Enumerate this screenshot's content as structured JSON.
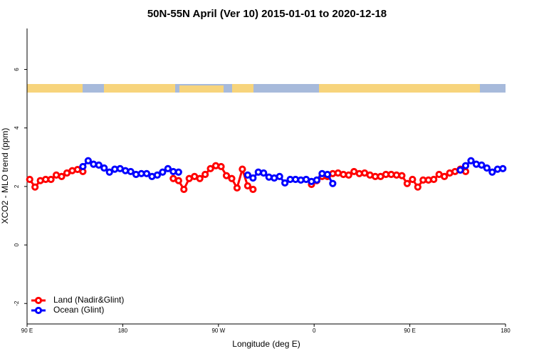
{
  "chart_data": {
    "type": "line",
    "title": "50N-55N April (Ver 10)   2015-01-01 to 2020-12-18",
    "x_label": "Longitude (deg E)",
    "y_label": "XCO2 - MLO trend (ppm)",
    "x": [
      92.5,
      97.5,
      102.5,
      107.5,
      112.5,
      117.5,
      122.5,
      127.5,
      132.5,
      137.5,
      142.5,
      147.5,
      152.5,
      157.5,
      162.5,
      167.5,
      172.5,
      177.5,
      182.5,
      187.5,
      192.5,
      197.5,
      202.5,
      207.5,
      212.5,
      217.5,
      222.5,
      227.5,
      232.5,
      237.5,
      242.5,
      247.5,
      252.5,
      257.5,
      262.5,
      267.5,
      272.5,
      277.5,
      282.5,
      287.5,
      292.5,
      297.5,
      302.5,
      307.5,
      312.5,
      317.5,
      322.5,
      327.5,
      332.5,
      337.5,
      342.5,
      347.5,
      352.5,
      357.5,
      362.5,
      367.5,
      372.5,
      377.5,
      382.5,
      387.5,
      392.5,
      397.5,
      402.5,
      407.5,
      412.5,
      417.5,
      422.5,
      427.5,
      432.5,
      437.5,
      442.5,
      447.5,
      452.5,
      457.5,
      462.5,
      467.5,
      472.5,
      477.5,
      482.5,
      487.5,
      492.5,
      497.5,
      502.5,
      507.5,
      512.5,
      517.5,
      522.5,
      527.5,
      532.5,
      537.5
    ],
    "series": [
      {
        "name": "Land (Nadir&Glint)",
        "color": "#ff0000",
        "values": [
          2.24,
          1.98,
          2.2,
          2.24,
          2.24,
          2.39,
          2.34,
          2.46,
          2.54,
          2.58,
          2.51,
          null,
          null,
          null,
          null,
          null,
          null,
          null,
          null,
          null,
          null,
          null,
          null,
          null,
          null,
          null,
          null,
          2.27,
          2.2,
          1.9,
          2.27,
          2.34,
          2.27,
          2.41,
          2.61,
          2.71,
          2.68,
          2.37,
          2.27,
          1.95,
          2.59,
          2.02,
          1.9,
          null,
          null,
          null,
          null,
          null,
          null,
          null,
          null,
          null,
          null,
          2.07,
          2.2,
          2.34,
          2.34,
          2.44,
          2.46,
          2.41,
          2.39,
          2.51,
          2.44,
          2.46,
          2.39,
          2.34,
          2.34,
          2.41,
          2.41,
          2.39,
          2.37,
          2.1,
          2.24,
          1.98,
          2.22,
          2.22,
          2.24,
          2.41,
          2.34,
          2.46,
          2.51,
          2.59,
          2.51,
          null,
          null,
          null,
          null,
          null,
          null,
          null
        ]
      },
      {
        "name": "Ocean (Glint)",
        "color": "#0000ff",
        "values": [
          null,
          null,
          null,
          null,
          null,
          null,
          null,
          null,
          null,
          null,
          2.68,
          2.88,
          2.76,
          2.73,
          2.63,
          2.49,
          2.59,
          2.61,
          2.54,
          2.51,
          2.41,
          2.44,
          2.44,
          2.34,
          2.39,
          2.49,
          2.61,
          2.51,
          2.49,
          null,
          null,
          null,
          null,
          null,
          null,
          null,
          null,
          null,
          null,
          null,
          null,
          2.39,
          2.29,
          2.49,
          2.46,
          2.32,
          2.29,
          2.34,
          2.12,
          2.24,
          2.24,
          2.22,
          2.24,
          2.17,
          2.22,
          2.44,
          2.41,
          2.1,
          null,
          null,
          null,
          null,
          null,
          null,
          null,
          null,
          null,
          null,
          null,
          null,
          null,
          null,
          null,
          null,
          null,
          null,
          null,
          null,
          null,
          null,
          null,
          2.56,
          2.71,
          2.88,
          2.76,
          2.73,
          2.63,
          2.49,
          2.59,
          2.61
        ]
      }
    ],
    "xlim": [
      90,
      540
    ],
    "xticks": [
      {
        "value": 90,
        "label": "90 E"
      },
      180,
      {
        "value": 270,
        "label": "90 W"
      },
      {
        "value": 360,
        "label": "0"
      },
      {
        "value": 450,
        "label": "90 E"
      },
      {
        "value": 540,
        "label": "180"
      }
    ],
    "ylim": [
      -2.7,
      7.4
    ],
    "yticks": [
      -2,
      0,
      2,
      4,
      6
    ],
    "legend": "bottom-left"
  }
}
